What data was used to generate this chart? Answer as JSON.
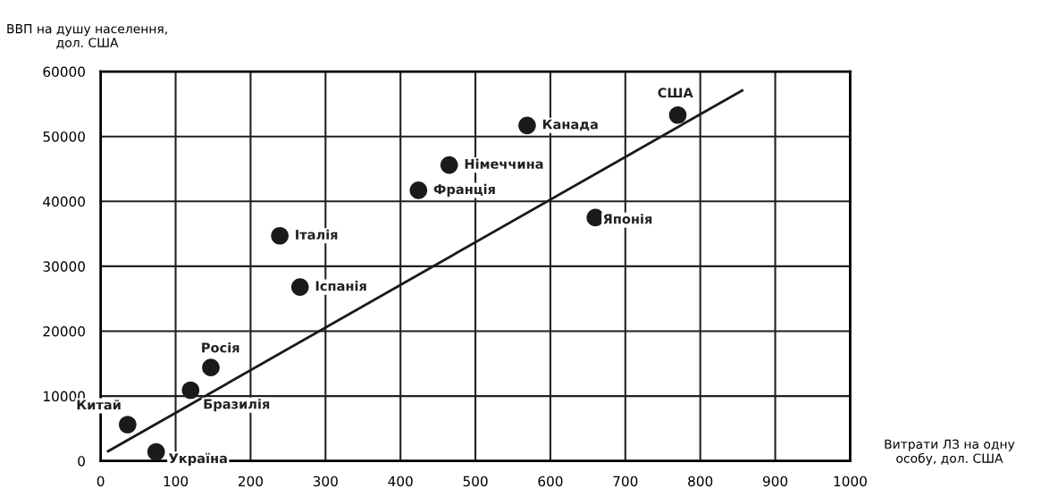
{
  "chart_data": {
    "type": "scatter",
    "xlabel": "Витрати ЛЗ на одну\nособу, дол. США",
    "ylabel": "ВВП на душу населення,\nдол. США",
    "series": [
      {
        "type": "scatter",
        "color": "#1a1a1a",
        "marker": "circle",
        "x": [
          74,
          36,
          120,
          147,
          239,
          266,
          424,
          465,
          569,
          660,
          770
        ],
        "values": [
          1400,
          5600,
          10900,
          14400,
          34700,
          26800,
          41700,
          45600,
          51700,
          37500,
          53300
        ]
      },
      {
        "type": "line",
        "color": "#1a1a1a",
        "line_style": "solid",
        "x": [
          10,
          856
        ],
        "values": [
          1500,
          57100
        ]
      }
    ],
    "annotations": [
      {
        "text": "Україна",
        "x": 74,
        "y": 1400
      },
      {
        "text": "Китай",
        "x": 36,
        "y": 5600
      },
      {
        "text": "Бразилія",
        "x": 120,
        "y": 10900
      },
      {
        "text": "Росія",
        "x": 147,
        "y": 14400
      },
      {
        "text": "Італія",
        "x": 239,
        "y": 34700
      },
      {
        "text": "Іспанія",
        "x": 266,
        "y": 26800
      },
      {
        "text": "Франція",
        "x": 424,
        "y": 41700
      },
      {
        "text": "Німеччина",
        "x": 465,
        "y": 45600
      },
      {
        "text": "Канада",
        "x": 569,
        "y": 51700
      },
      {
        "text": "Японія",
        "x": 660,
        "y": 37500
      },
      {
        "text": "США",
        "x": 770,
        "y": 53300
      }
    ],
    "xlim": [
      0,
      1000
    ],
    "xticks": [
      0,
      100,
      200,
      300,
      400,
      500,
      600,
      700,
      800,
      900,
      1000
    ],
    "ylim": [
      0,
      60000
    ],
    "yticks": [
      0,
      10000,
      20000,
      30000,
      40000,
      50000,
      60000
    ],
    "grid": true,
    "legend": false
  }
}
